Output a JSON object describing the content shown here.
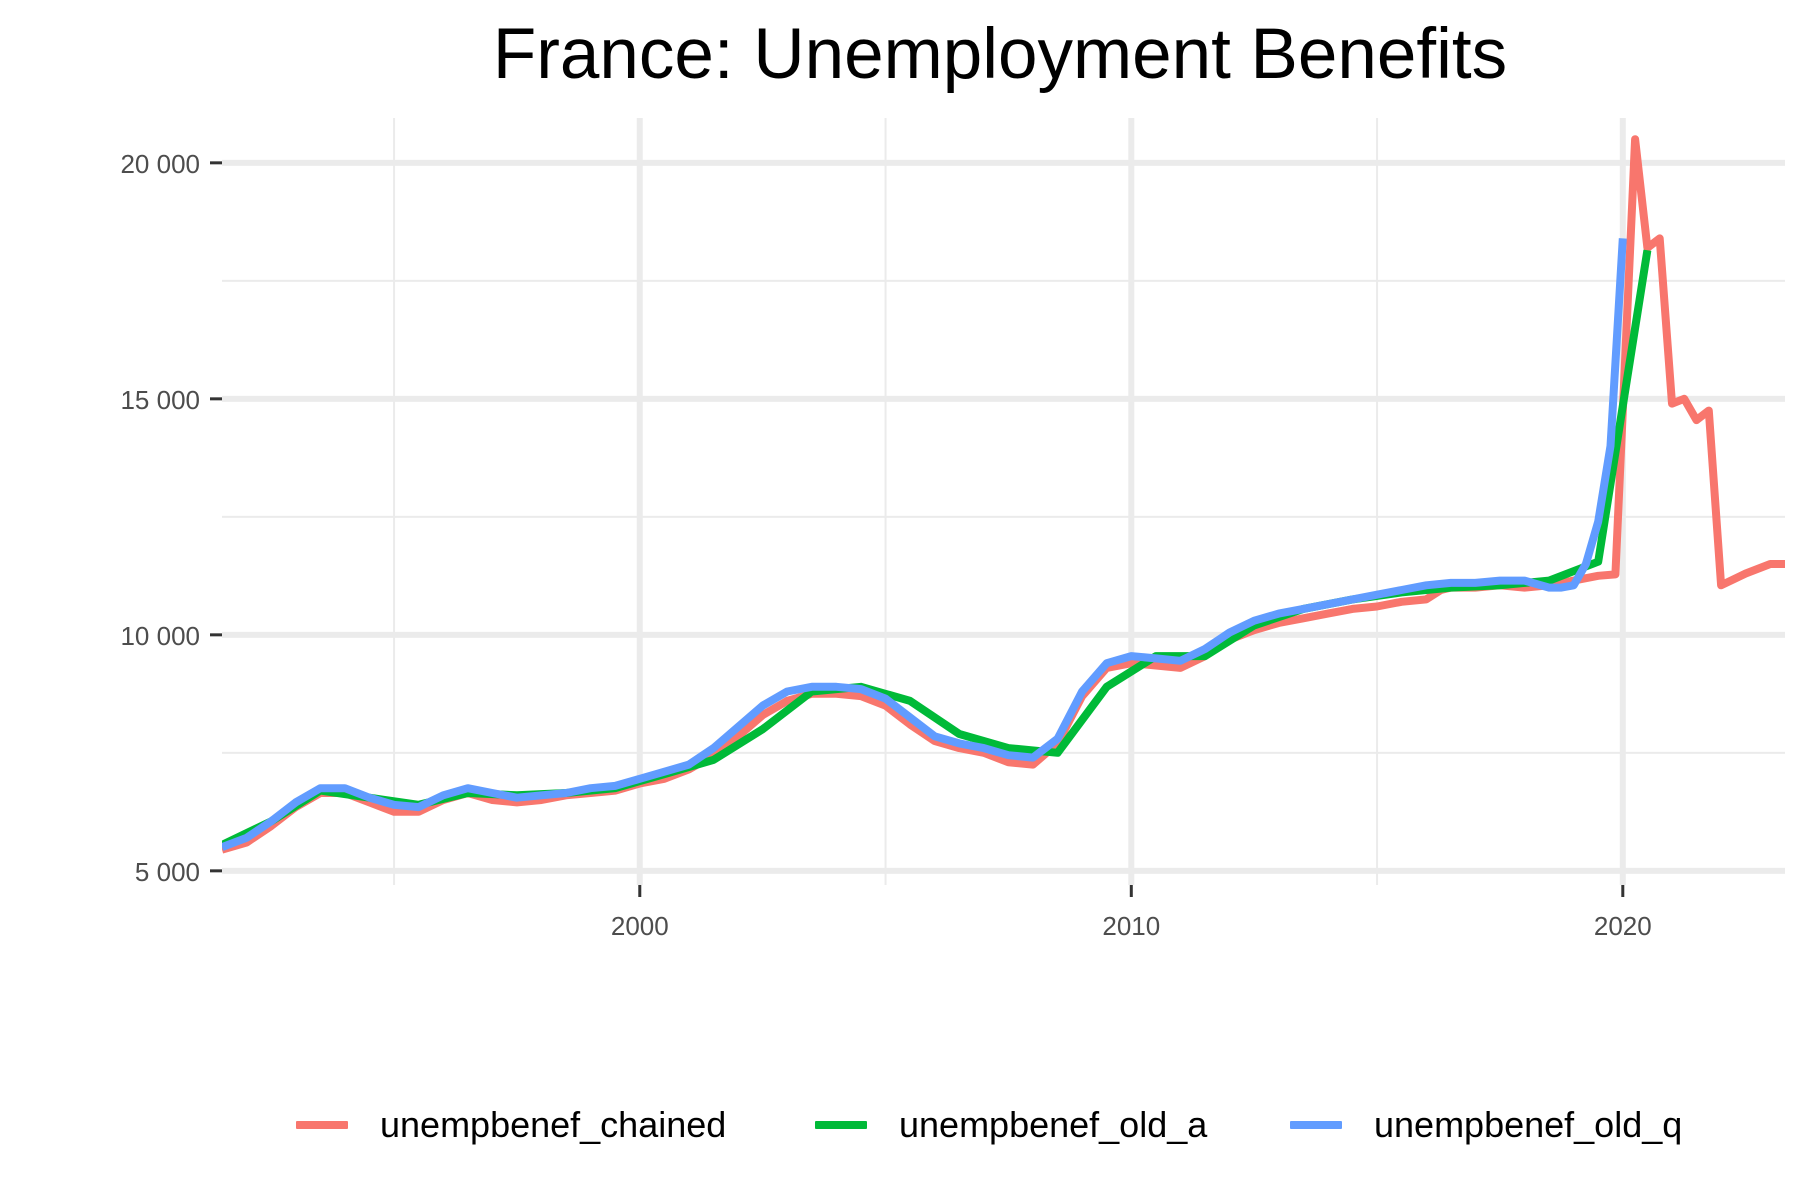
{
  "chart_data": {
    "type": "line",
    "title": "France: Unemployment Benefits",
    "xlabel": "",
    "ylabel": "",
    "xlim": [
      1991.5,
      2023.3
    ],
    "ylim": [
      4700,
      20950
    ],
    "y_ticks": [
      5000,
      10000,
      15000,
      20000
    ],
    "y_tick_labels": [
      "5 000",
      "10 000",
      "15 000",
      "20 000"
    ],
    "x_ticks": [
      2000,
      2010,
      2020
    ],
    "x_tick_labels": [
      "2000",
      "2010",
      "2020"
    ],
    "grid": true,
    "legend_position": "bottom",
    "series": [
      {
        "name": "unempbenef_chained",
        "color": "#F8766D",
        "points": [
          [
            1991.5,
            5450
          ],
          [
            1992.0,
            5600
          ],
          [
            1992.5,
            5950
          ],
          [
            1993.0,
            6350
          ],
          [
            1993.5,
            6650
          ],
          [
            1994.0,
            6650
          ],
          [
            1994.5,
            6450
          ],
          [
            1995.0,
            6250
          ],
          [
            1995.5,
            6250
          ],
          [
            1996.0,
            6500
          ],
          [
            1996.5,
            6650
          ],
          [
            1997.0,
            6500
          ],
          [
            1997.5,
            6450
          ],
          [
            1998.0,
            6500
          ],
          [
            1998.5,
            6600
          ],
          [
            1999.0,
            6650
          ],
          [
            1999.5,
            6700
          ],
          [
            2000.0,
            6850
          ],
          [
            2000.5,
            6950
          ],
          [
            2001.0,
            7150
          ],
          [
            2001.5,
            7450
          ],
          [
            2002.0,
            7850
          ],
          [
            2002.5,
            8300
          ],
          [
            2003.0,
            8600
          ],
          [
            2003.5,
            8750
          ],
          [
            2004.0,
            8750
          ],
          [
            2004.5,
            8700
          ],
          [
            2005.0,
            8500
          ],
          [
            2005.5,
            8100
          ],
          [
            2006.0,
            7750
          ],
          [
            2006.5,
            7600
          ],
          [
            2007.0,
            7500
          ],
          [
            2007.5,
            7300
          ],
          [
            2008.0,
            7250
          ],
          [
            2008.5,
            7700
          ],
          [
            2009.0,
            8700
          ],
          [
            2009.5,
            9300
          ],
          [
            2010.0,
            9400
          ],
          [
            2010.5,
            9350
          ],
          [
            2011.0,
            9300
          ],
          [
            2011.5,
            9550
          ],
          [
            2012.0,
            9900
          ],
          [
            2012.5,
            10100
          ],
          [
            2013.0,
            10250
          ],
          [
            2013.5,
            10350
          ],
          [
            2014.0,
            10450
          ],
          [
            2014.5,
            10550
          ],
          [
            2015.0,
            10600
          ],
          [
            2015.5,
            10700
          ],
          [
            2016.0,
            10750
          ],
          [
            2016.3,
            10950
          ],
          [
            2016.5,
            11000
          ],
          [
            2017.0,
            11000
          ],
          [
            2017.5,
            11050
          ],
          [
            2018.0,
            11000
          ],
          [
            2018.5,
            11050
          ],
          [
            2019.0,
            11150
          ],
          [
            2019.5,
            11250
          ],
          [
            2019.85,
            11280
          ],
          [
            2020.25,
            20500
          ],
          [
            2020.5,
            18200
          ],
          [
            2020.75,
            18400
          ],
          [
            2021.0,
            14900
          ],
          [
            2021.25,
            15000
          ],
          [
            2021.5,
            14550
          ],
          [
            2021.75,
            14750
          ],
          [
            2022.0,
            11050
          ],
          [
            2022.5,
            11300
          ],
          [
            2023.0,
            11500
          ],
          [
            2023.3,
            11500
          ]
        ]
      },
      {
        "name": "unempbenef_old_a",
        "color": "#00BA38",
        "points": [
          [
            1991.5,
            5550
          ],
          [
            1992.5,
            6050
          ],
          [
            1993.5,
            6700
          ],
          [
            1994.5,
            6550
          ],
          [
            1995.5,
            6400
          ],
          [
            1996.5,
            6650
          ],
          [
            1997.5,
            6600
          ],
          [
            1998.5,
            6650
          ],
          [
            1999.5,
            6750
          ],
          [
            2000.5,
            7050
          ],
          [
            2001.5,
            7350
          ],
          [
            2002.5,
            8000
          ],
          [
            2003.5,
            8800
          ],
          [
            2004.5,
            8900
          ],
          [
            2005.5,
            8600
          ],
          [
            2006.5,
            7900
          ],
          [
            2007.5,
            7600
          ],
          [
            2008.5,
            7500
          ],
          [
            2009.5,
            8900
          ],
          [
            2010.5,
            9550
          ],
          [
            2011.5,
            9550
          ],
          [
            2012.5,
            10200
          ],
          [
            2013.5,
            10550
          ],
          [
            2014.5,
            10750
          ],
          [
            2015.5,
            10900
          ],
          [
            2016.5,
            11000
          ],
          [
            2017.5,
            11050
          ],
          [
            2018.5,
            11150
          ],
          [
            2019.5,
            11550
          ],
          [
            2020.5,
            18150
          ]
        ]
      },
      {
        "name": "unempbenef_old_q",
        "color": "#619CFF",
        "points": [
          [
            1991.5,
            5500
          ],
          [
            1992.0,
            5700
          ],
          [
            1992.5,
            6050
          ],
          [
            1993.0,
            6450
          ],
          [
            1993.5,
            6750
          ],
          [
            1994.0,
            6750
          ],
          [
            1994.5,
            6550
          ],
          [
            1995.0,
            6400
          ],
          [
            1995.5,
            6350
          ],
          [
            1996.0,
            6600
          ],
          [
            1996.5,
            6750
          ],
          [
            1997.0,
            6650
          ],
          [
            1997.5,
            6550
          ],
          [
            1998.0,
            6600
          ],
          [
            1998.5,
            6650
          ],
          [
            1999.0,
            6750
          ],
          [
            1999.5,
            6800
          ],
          [
            2000.0,
            6950
          ],
          [
            2000.5,
            7100
          ],
          [
            2001.0,
            7250
          ],
          [
            2001.5,
            7600
          ],
          [
            2002.0,
            8050
          ],
          [
            2002.5,
            8500
          ],
          [
            2003.0,
            8800
          ],
          [
            2003.5,
            8900
          ],
          [
            2004.0,
            8900
          ],
          [
            2004.5,
            8850
          ],
          [
            2005.0,
            8650
          ],
          [
            2005.5,
            8250
          ],
          [
            2006.0,
            7850
          ],
          [
            2006.5,
            7700
          ],
          [
            2007.0,
            7600
          ],
          [
            2007.5,
            7450
          ],
          [
            2008.0,
            7400
          ],
          [
            2008.5,
            7800
          ],
          [
            2009.0,
            8800
          ],
          [
            2009.5,
            9400
          ],
          [
            2010.0,
            9550
          ],
          [
            2010.5,
            9500
          ],
          [
            2011.0,
            9450
          ],
          [
            2011.5,
            9700
          ],
          [
            2012.0,
            10050
          ],
          [
            2012.5,
            10300
          ],
          [
            2013.0,
            10450
          ],
          [
            2013.5,
            10550
          ],
          [
            2014.0,
            10650
          ],
          [
            2014.5,
            10750
          ],
          [
            2015.0,
            10850
          ],
          [
            2015.5,
            10950
          ],
          [
            2016.0,
            11050
          ],
          [
            2016.5,
            11100
          ],
          [
            2017.0,
            11100
          ],
          [
            2017.5,
            11150
          ],
          [
            2018.0,
            11150
          ],
          [
            2018.5,
            11000
          ],
          [
            2018.75,
            11000
          ],
          [
            2019.0,
            11050
          ],
          [
            2019.25,
            11500
          ],
          [
            2019.5,
            12400
          ],
          [
            2019.75,
            14000
          ],
          [
            2020.0,
            18400
          ]
        ]
      }
    ]
  }
}
